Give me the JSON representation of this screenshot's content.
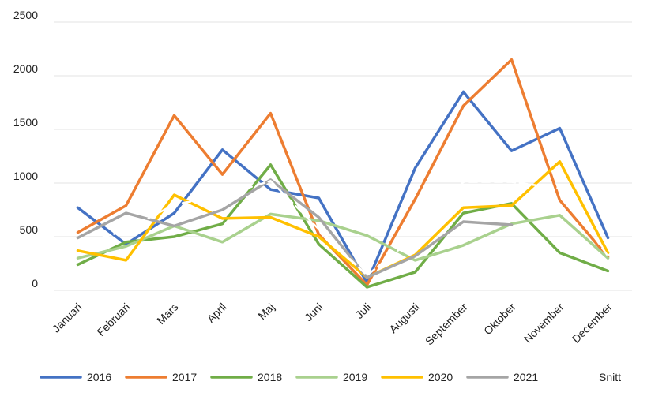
{
  "chart_data": {
    "type": "line",
    "title": "",
    "xlabel": "",
    "ylabel": "",
    "ylim": [
      0,
      2500
    ],
    "yticks": [
      0,
      500,
      1000,
      1500,
      2000,
      2500
    ],
    "grid": true,
    "legend": "bottom",
    "categories": [
      "Januari",
      "Februari",
      "Mars",
      "April",
      "Maj",
      "Juni",
      "Juli",
      "Augusti",
      "September",
      "Oktober",
      "November",
      "December"
    ],
    "series": [
      {
        "name": "2016",
        "color": "#4472C4",
        "values": [
          770,
          430,
          720,
          1310,
          940,
          860,
          70,
          1140,
          1850,
          1300,
          1510,
          490
        ]
      },
      {
        "name": "2017",
        "color": "#ED7D31",
        "values": [
          540,
          790,
          1630,
          1080,
          1650,
          520,
          50,
          850,
          1720,
          2150,
          840,
          310
        ]
      },
      {
        "name": "2018",
        "color": "#70AD47",
        "values": [
          240,
          450,
          500,
          620,
          1170,
          430,
          30,
          170,
          720,
          810,
          350,
          180
        ]
      },
      {
        "name": "2019",
        "color": "#A9D18E",
        "values": [
          300,
          410,
          600,
          450,
          710,
          650,
          510,
          280,
          420,
          620,
          700,
          300
        ]
      },
      {
        "name": "2020",
        "color": "#FFC000",
        "values": [
          370,
          280,
          890,
          670,
          680,
          500,
          120,
          330,
          770,
          790,
          1200,
          350
        ]
      },
      {
        "name": "2021",
        "color": "#A5A5A5",
        "values": [
          490,
          720,
          600,
          750,
          1030,
          680,
          120,
          320,
          640,
          610,
          null,
          null
        ]
      },
      {
        "name": "Snitt",
        "color": "#FFFFFF",
        "dashed": true,
        "values": [
          420,
          560,
          800,
          880,
          1020,
          570,
          140,
          500,
          1010,
          1010,
          950,
          320
        ]
      }
    ]
  }
}
